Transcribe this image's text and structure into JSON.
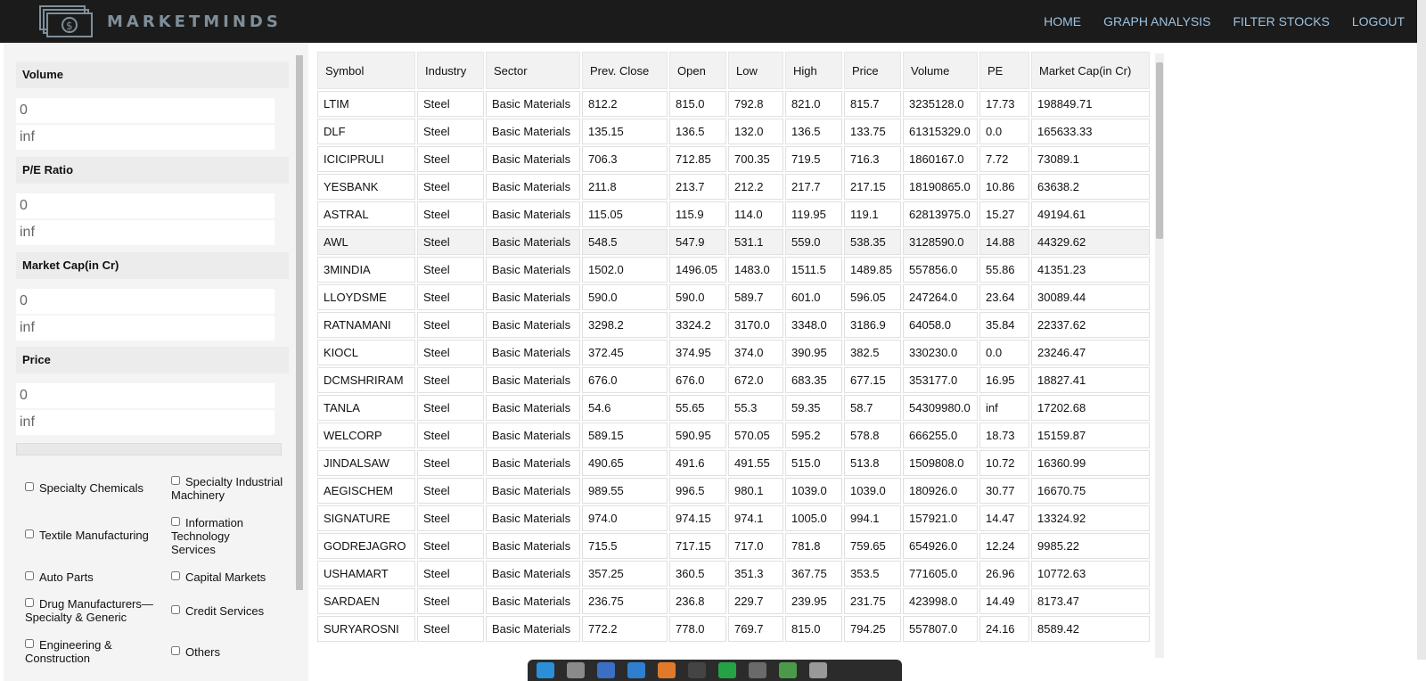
{
  "brand": {
    "name": "MARKETMINDS"
  },
  "nav": [
    {
      "label": "HOME"
    },
    {
      "label": "GRAPH ANALYSIS"
    },
    {
      "label": "FILTER STOCKS"
    },
    {
      "label": "LOGOUT"
    }
  ],
  "filters": [
    {
      "label": "Volume",
      "min": "0",
      "max": "inf"
    },
    {
      "label": "P/E Ratio",
      "min": "0",
      "max": "inf"
    },
    {
      "label": "Market Cap(in Cr)",
      "min": "0",
      "max": "inf"
    },
    {
      "label": "Price",
      "min": "0",
      "max": "inf"
    }
  ],
  "industries": [
    "Specialty Chemicals",
    "Specialty Industrial Machinery",
    "Textile Manufacturing",
    "Information Technology Services",
    "Auto Parts",
    "Capital Markets",
    "Drug Manufacturers—Specialty & Generic",
    "Credit Services",
    "Engineering & Construction",
    "Others"
  ],
  "table": {
    "columns": [
      "Symbol",
      "Industry",
      "Sector",
      "Prev. Close",
      "Open",
      "Low",
      "High",
      "Price",
      "Volume",
      "PE",
      "Market Cap(in Cr)"
    ],
    "rows": [
      [
        "LTIM",
        "Steel",
        "Basic Materials",
        "812.2",
        "815.0",
        "792.8",
        "821.0",
        "815.7",
        "3235128.0",
        "17.73",
        "198849.71"
      ],
      [
        "DLF",
        "Steel",
        "Basic Materials",
        "135.15",
        "136.5",
        "132.0",
        "136.5",
        "133.75",
        "61315329.0",
        "0.0",
        "165633.33"
      ],
      [
        "ICICIPRULI",
        "Steel",
        "Basic Materials",
        "706.3",
        "712.85",
        "700.35",
        "719.5",
        "716.3",
        "1860167.0",
        "7.72",
        "73089.1"
      ],
      [
        "YESBANK",
        "Steel",
        "Basic Materials",
        "211.8",
        "213.7",
        "212.2",
        "217.7",
        "217.15",
        "18190865.0",
        "10.86",
        "63638.2"
      ],
      [
        "ASTRAL",
        "Steel",
        "Basic Materials",
        "115.05",
        "115.9",
        "114.0",
        "119.95",
        "119.1",
        "62813975.0",
        "15.27",
        "49194.61"
      ],
      [
        "AWL",
        "Steel",
        "Basic Materials",
        "548.5",
        "547.9",
        "531.1",
        "559.0",
        "538.35",
        "3128590.0",
        "14.88",
        "44329.62"
      ],
      [
        "3MINDIA",
        "Steel",
        "Basic Materials",
        "1502.0",
        "1496.05",
        "1483.0",
        "1511.5",
        "1489.85",
        "557856.0",
        "55.86",
        "41351.23"
      ],
      [
        "LLOYDSME",
        "Steel",
        "Basic Materials",
        "590.0",
        "590.0",
        "589.7",
        "601.0",
        "596.05",
        "247264.0",
        "23.64",
        "30089.44"
      ],
      [
        "RATNAMANI",
        "Steel",
        "Basic Materials",
        "3298.2",
        "3324.2",
        "3170.0",
        "3348.0",
        "3186.9",
        "64058.0",
        "35.84",
        "22337.62"
      ],
      [
        "KIOCL",
        "Steel",
        "Basic Materials",
        "372.45",
        "374.95",
        "374.0",
        "390.95",
        "382.5",
        "330230.0",
        "0.0",
        "23246.47"
      ],
      [
        "DCMSHRIRAM",
        "Steel",
        "Basic Materials",
        "676.0",
        "676.0",
        "672.0",
        "683.35",
        "677.15",
        "353177.0",
        "16.95",
        "18827.41"
      ],
      [
        "TANLA",
        "Steel",
        "Basic Materials",
        "54.6",
        "55.65",
        "55.3",
        "59.35",
        "58.7",
        "54309980.0",
        "inf",
        "17202.68"
      ],
      [
        "WELCORP",
        "Steel",
        "Basic Materials",
        "589.15",
        "590.95",
        "570.05",
        "595.2",
        "578.8",
        "666255.0",
        "18.73",
        "15159.87"
      ],
      [
        "JINDALSAW",
        "Steel",
        "Basic Materials",
        "490.65",
        "491.6",
        "491.55",
        "515.0",
        "513.8",
        "1509808.0",
        "10.72",
        "16360.99"
      ],
      [
        "AEGISCHEM",
        "Steel",
        "Basic Materials",
        "989.55",
        "996.5",
        "980.1",
        "1039.0",
        "1039.0",
        "180926.0",
        "30.77",
        "16670.75"
      ],
      [
        "SIGNATURE",
        "Steel",
        "Basic Materials",
        "974.0",
        "974.15",
        "974.1",
        "1005.0",
        "994.1",
        "157921.0",
        "14.47",
        "13324.92"
      ],
      [
        "GODREJAGRO",
        "Steel",
        "Basic Materials",
        "715.5",
        "717.15",
        "717.0",
        "781.8",
        "759.65",
        "654926.0",
        "12.24",
        "9985.22"
      ],
      [
        "USHAMART",
        "Steel",
        "Basic Materials",
        "357.25",
        "360.5",
        "351.3",
        "367.75",
        "353.5",
        "771605.0",
        "26.96",
        "10772.63"
      ],
      [
        "SARDAEN",
        "Steel",
        "Basic Materials",
        "236.75",
        "236.8",
        "229.7",
        "239.95",
        "231.75",
        "423998.0",
        "14.49",
        "8173.47"
      ],
      [
        "SURYAROSNI",
        "Steel",
        "Basic Materials",
        "772.2",
        "778.0",
        "769.7",
        "815.0",
        "794.25",
        "557807.0",
        "24.16",
        "8589.42"
      ]
    ]
  },
  "colors": {
    "navbar": "#1b1b1b",
    "nav_link": "#9ec3e0",
    "brand": "#7f8f99"
  },
  "taskbar_icons": [
    "edge-icon",
    "files-icon",
    "writer-icon",
    "vscode-icon",
    "store-icon",
    "terminal-icon",
    "whatsapp-icon",
    "image-viewer-icon",
    "recycle-icon",
    "apps-grid-icon"
  ]
}
